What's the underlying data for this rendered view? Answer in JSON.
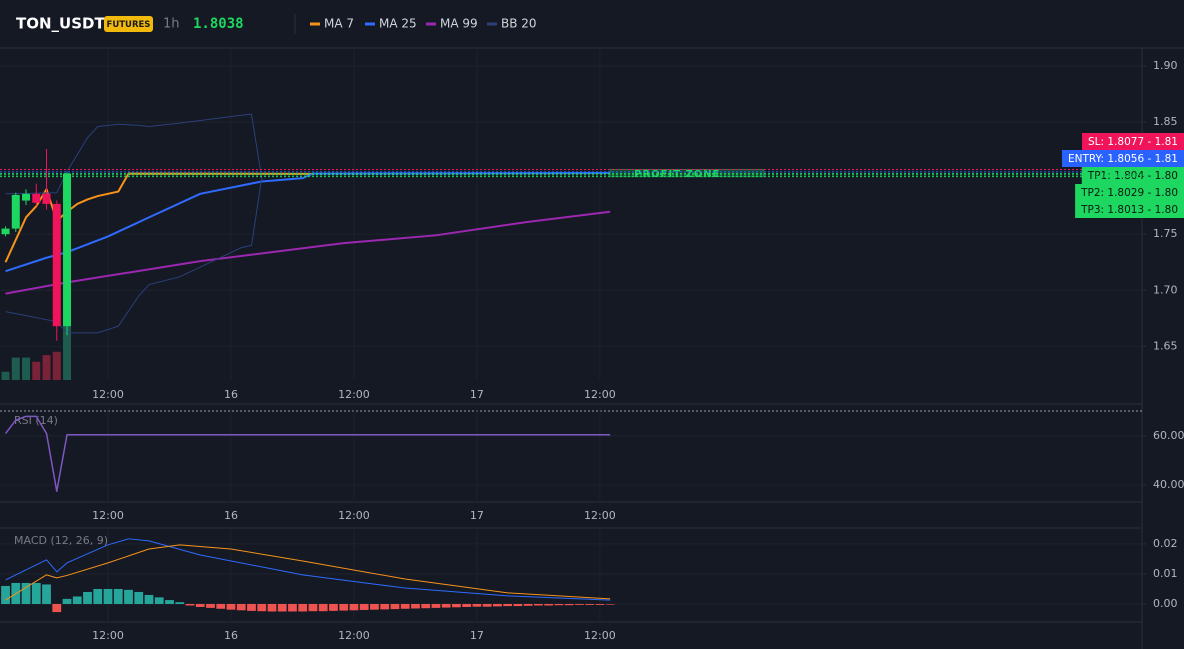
{
  "header": {
    "symbol": "TON_USDT",
    "badge": "FUTURES",
    "interval": "1h",
    "last_price": 1.8038
  },
  "chart_data": [
    {
      "type": "candlestick",
      "xlim": [
        1.46,
        112.9
      ],
      "xticks": [
        {
          "value": 12,
          "label": "12:00"
        },
        {
          "value": 24,
          "label": "16"
        },
        {
          "value": 36,
          "label": "12:00"
        },
        {
          "value": 48,
          "label": "17"
        },
        {
          "value": 60,
          "label": "12:00"
        }
      ],
      "ylim": [
        1.62,
        1.916
      ],
      "yticks": [
        1.65,
        {
          "value": 1.7,
          "label": "1.70"
        },
        1.75,
        1.85,
        {
          "value": 1.9,
          "label": "1.90"
        }
      ],
      "grid": true,
      "candles": {
        "x": [
          2,
          3,
          4,
          5,
          6,
          7,
          8
        ],
        "open": [
          1.75,
          1.755,
          1.78,
          1.786,
          1.786,
          1.777,
          1.668
        ],
        "high": [
          1.757,
          1.787,
          1.79,
          1.795,
          1.826,
          1.78,
          1.805
        ],
        "low": [
          1.748,
          1.752,
          1.776,
          1.775,
          1.772,
          1.655,
          1.66
        ],
        "close": [
          1.755,
          1.785,
          1.786,
          1.778,
          1.777,
          1.668,
          1.804
        ],
        "up_color": "#1ed760",
        "down_color": "#f0145a"
      },
      "volume": {
        "values": [
          10,
          27,
          27,
          22,
          30,
          34,
          78
        ],
        "ylim": [
          0,
          400
        ],
        "up_color": "#1d5c4e",
        "down_color": "#7a2238"
      },
      "series": [
        {
          "name": "MA 7",
          "color": "#f7931a",
          "x": [
            2,
            3,
            4,
            5,
            6,
            7,
            8,
            9,
            10,
            11,
            12,
            13,
            14,
            32
          ],
          "values": [
            1.725,
            1.745,
            1.765,
            1.775,
            1.79,
            1.762,
            1.77,
            1.777,
            1.781,
            1.784,
            1.786,
            1.788,
            1.804,
            1.8038
          ]
        },
        {
          "name": "MA 25",
          "color": "#2f6bff",
          "x": [
            2,
            6,
            8,
            12,
            16,
            21,
            27,
            31,
            32,
            61
          ],
          "values": [
            1.717,
            1.729,
            1.734,
            1.748,
            1.765,
            1.786,
            1.797,
            1.8,
            1.804,
            1.8045
          ]
        },
        {
          "name": "MA 99",
          "color": "#9c27b0",
          "x": [
            2,
            8,
            21,
            35,
            44,
            53,
            61
          ],
          "values": [
            1.697,
            1.707,
            1.726,
            1.742,
            1.749,
            1.761,
            1.77
          ]
        },
        {
          "name": "BB 20",
          "color": "#2b3f7a",
          "x": [
            2,
            7,
            8,
            10,
            11,
            13,
            15,
            16,
            19,
            25,
            26,
            27
          ],
          "values": [
            1.786,
            1.787,
            1.806,
            1.836,
            1.846,
            1.848,
            1.847,
            1.846,
            1.849,
            1.856,
            1.857,
            1.8
          ],
          "lower": [
            1.681,
            1.672,
            1.662,
            1.662,
            1.662,
            1.668,
            1.695,
            1.705,
            1.712,
            1.738,
            1.74,
            1.8
          ]
        }
      ],
      "levels": [
        {
          "value": 1.8077,
          "label": "SL: 1.8077 - 1.81",
          "color": "#f0145a",
          "text_color": "#ffffff"
        },
        {
          "value": 1.8056,
          "label": "ENTRY: 1.8056 - 1.81",
          "color": "#2962ff",
          "text_color": "#ffffff"
        },
        {
          "value": 1.804,
          "label": "TP1: 1.804 - 1.80",
          "color": "#1ed760",
          "text_color": "#0b1a10"
        },
        {
          "value": 1.8029,
          "label": "TP2: 1.8029 - 1.80",
          "color": "#1ed760",
          "text_color": "#0b1a10"
        },
        {
          "value": 1.8013,
          "label": "TP3: 1.8013 - 1.80",
          "color": "#1ed760",
          "text_color": "#0b1a10"
        }
      ],
      "zone": {
        "label": "PROFIT ZONE",
        "xlim": [
          61,
          76
        ],
        "ylim": [
          1.8013,
          1.8077
        ],
        "color": "#1ed760"
      }
    },
    {
      "type": "line",
      "title": "RSI (14)",
      "xlim": [
        1.46,
        112.9
      ],
      "xticks": [
        {
          "value": 12,
          "label": "12:00"
        },
        {
          "value": 24,
          "label": "16"
        },
        {
          "value": 36,
          "label": "12:00"
        },
        {
          "value": 48,
          "label": "17"
        },
        {
          "value": 60,
          "label": "12:00"
        }
      ],
      "ylim": [
        33.1,
        71.4
      ],
      "yticks": [
        {
          "value": 40,
          "label": "40.00"
        },
        {
          "value": 60,
          "label": "60.00"
        }
      ],
      "grid": true,
      "series": [
        {
          "color": "#7e57c2",
          "x": [
            2,
            3,
            4,
            5,
            6,
            7,
            8,
            61
          ],
          "values": [
            61,
            66.5,
            68,
            68,
            61,
            37.5,
            60.5,
            60.5
          ]
        }
      ]
    },
    {
      "type": "macd",
      "title": "MACD (12, 26, 9)",
      "xlim": [
        1.46,
        112.9
      ],
      "xticks": [
        {
          "value": 12,
          "label": "12:00"
        },
        {
          "value": 24,
          "label": "16"
        },
        {
          "value": 36,
          "label": "12:00"
        },
        {
          "value": 48,
          "label": "17"
        },
        {
          "value": 60,
          "label": "12:00"
        }
      ],
      "ylim": [
        -0.006,
        0.0253
      ],
      "yticks": [
        {
          "value": 0,
          "label": "0.00"
        },
        0.01,
        0.02
      ],
      "grid": true,
      "histogram": {
        "up_color": "#26a69a",
        "down_color": "#ef5350",
        "x": [
          2,
          3,
          4,
          5,
          6,
          7,
          8,
          9,
          10,
          11,
          12,
          13,
          14,
          15,
          16,
          17,
          18,
          19,
          20,
          21,
          22,
          23,
          24,
          25,
          26,
          27,
          28,
          29,
          30,
          31,
          32,
          33,
          34,
          35,
          36,
          37,
          38,
          39,
          40,
          41,
          42,
          43,
          44,
          45,
          46,
          47,
          48,
          49,
          50,
          51,
          52,
          53,
          54,
          55,
          56,
          57,
          58,
          59,
          60,
          61
        ],
        "values": [
          0.006,
          0.007,
          0.007,
          0.007,
          0.0065,
          -0.0027,
          0.0017,
          0.0025,
          0.004,
          0.005,
          0.005,
          0.005,
          0.0047,
          0.004,
          0.003,
          0.0022,
          0.0013,
          0.0006,
          -0.0005,
          -0.001,
          -0.0013,
          -0.0016,
          -0.0019,
          -0.0021,
          -0.0023,
          -0.0024,
          -0.0025,
          -0.0025,
          -0.0025,
          -0.0025,
          -0.0024,
          -0.0024,
          -0.0023,
          -0.0022,
          -0.0021,
          -0.002,
          -0.0019,
          -0.0018,
          -0.0017,
          -0.0016,
          -0.0015,
          -0.0014,
          -0.0013,
          -0.0012,
          -0.0011,
          -0.001,
          -0.0009,
          -0.0009,
          -0.0008,
          -0.0007,
          -0.0007,
          -0.0006,
          -0.0005,
          -0.0005,
          -0.0004,
          -0.0004,
          -0.0003,
          -0.0003,
          -0.0003,
          -0.0002
        ]
      },
      "series": [
        {
          "color": "#2f6bff",
          "x": [
            2,
            6,
            7,
            8,
            12,
            14,
            16,
            21,
            31,
            41,
            51,
            61
          ],
          "values": [
            0.008,
            0.0147,
            0.0107,
            0.0137,
            0.0197,
            0.0217,
            0.021,
            0.0163,
            0.0097,
            0.0053,
            0.0027,
            0.0013
          ]
        },
        {
          "color": "#f7931a",
          "x": [
            2,
            6,
            7,
            8,
            12,
            16,
            19,
            24,
            31,
            41,
            51,
            61
          ],
          "values": [
            0.0013,
            0.0097,
            0.0087,
            0.0095,
            0.0137,
            0.0183,
            0.0197,
            0.0183,
            0.0143,
            0.0083,
            0.0037,
            0.0017
          ]
        }
      ]
    }
  ]
}
